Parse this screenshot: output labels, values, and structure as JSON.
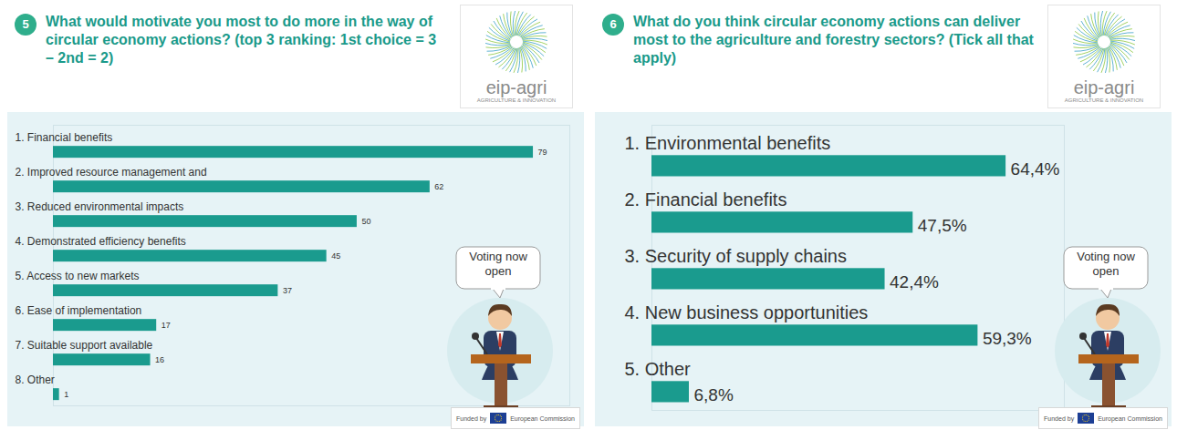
{
  "chart_data": [
    {
      "type": "bar",
      "panel": "5",
      "title": "What would motivate you most to do more in the way of circular economy actions? (top 3 ranking: 1st choice = 3 – 2nd = 2)",
      "categories": [
        "1. Financial benefits",
        "2. Improved resource management and",
        "3. Reduced environmental impacts",
        "4. Demonstrated efficiency benefits",
        "5. Access to new markets",
        "6. Ease of implementation",
        "7. Suitable support available",
        "8. Other"
      ],
      "values": [
        79,
        62,
        50,
        45,
        37,
        17,
        16,
        1
      ],
      "color": "#1a9b8e",
      "orientation": "horizontal",
      "data_labels": true,
      "tick_labels": false,
      "grid": false,
      "xlim": [
        0,
        85
      ],
      "annotations": [
        "Voting now open",
        "eip-agri",
        "AGRICULTURE & INNOVATION",
        "Funded by",
        "European Commission"
      ]
    },
    {
      "type": "bar",
      "panel": "6",
      "title": "What do you think circular economy actions can deliver most to the agriculture and forestry sectors? (Tick all that apply)",
      "categories": [
        "1. Environmental benefits",
        "2. Financial benefits",
        "3. Security of supply chains",
        "4. New business opportunities",
        "5. Other"
      ],
      "values": [
        64.4,
        47.5,
        42.4,
        59.3,
        6.8
      ],
      "value_labels": [
        "64,4%",
        "47,5%",
        "42,4%",
        "59,3%",
        "6,8%"
      ],
      "color": "#1a9b8e",
      "orientation": "horizontal",
      "data_labels": true,
      "tick_labels": false,
      "grid": false,
      "xlim": [
        0,
        75
      ],
      "annotations": [
        "Voting now open",
        "eip-agri",
        "AGRICULTURE & INNOVATION",
        "Funded by",
        "European Commission"
      ]
    }
  ]
}
